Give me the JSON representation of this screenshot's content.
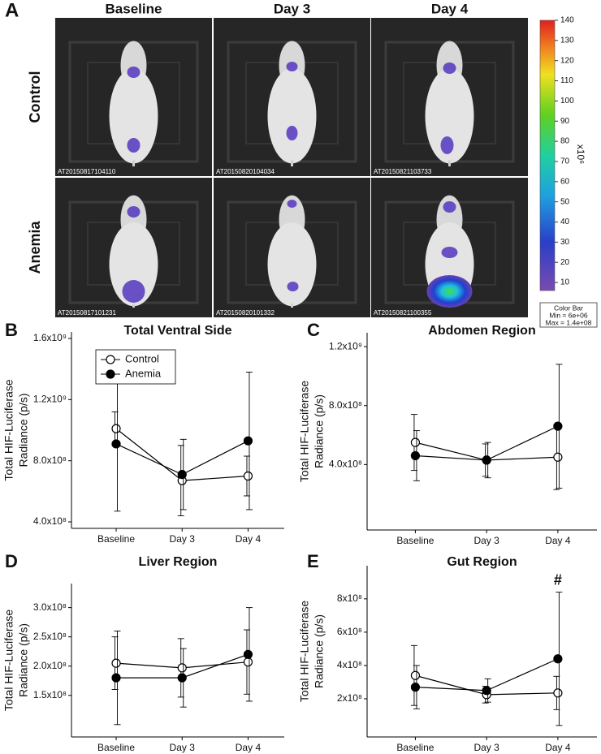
{
  "panel_a": {
    "panel_label": "A",
    "columns": [
      "Baseline",
      "Day 3",
      "Day 4"
    ],
    "rows": [
      "Control",
      "Anemia"
    ],
    "images": [
      "AT20150817104110",
      "AT20150820104034",
      "AT20150821103733",
      "AT20150817101231",
      "AT20150820101332",
      "AT20150821100355"
    ],
    "colorbar": {
      "lim": [
        6,
        140
      ],
      "ticks": [
        10,
        20,
        30,
        40,
        50,
        60,
        70,
        80,
        90,
        100,
        110,
        120,
        130,
        140
      ],
      "unit": "x10⁶",
      "box": [
        "Color Bar",
        "Min = 6e+06",
        "Max = 1.4e+08"
      ]
    }
  },
  "chart_data": [
    {
      "type": "line",
      "panel_label": "B",
      "title": "Total Ventral Side",
      "ylabel": [
        "Total HIF-Luciferase",
        "Radiance (p/s)"
      ],
      "categories": [
        "Baseline",
        "Day 3",
        "Day 4"
      ],
      "ylim": [
        400000000,
        1600000000
      ],
      "yticks": [
        {
          "value": 400000000,
          "label": "4.0x10⁸"
        },
        {
          "value": 800000000,
          "label": "8.0x10⁸"
        },
        {
          "value": 1200000000,
          "label": "1.2x10⁹"
        },
        {
          "value": 1600000000,
          "label": "1.6x10⁹"
        }
      ],
      "legend": "upper left",
      "series": [
        {
          "name": "Control",
          "color": "#000000",
          "marker_fill": "#ffffff",
          "values": [
            1010000000,
            670000000,
            700000000
          ],
          "errors": [
            110000000,
            230000000,
            130000000
          ]
        },
        {
          "name": "Anemia",
          "color": "#000000",
          "marker_fill": "#000000",
          "values": [
            910000000,
            710000000,
            930000000
          ],
          "errors": [
            440000000,
            230000000,
            450000000
          ]
        }
      ]
    },
    {
      "type": "line",
      "panel_label": "C",
      "title": "Abdomen Region",
      "ylabel": [
        "Total HIF-Luciferase",
        "Radiance (p/s)"
      ],
      "categories": [
        "Baseline",
        "Day 3",
        "Day 4"
      ],
      "ylim": [
        0,
        1250000000
      ],
      "yticks": [
        {
          "value": 400000000,
          "label": "4.0x10⁸"
        },
        {
          "value": 800000000,
          "label": "8.0x10⁸"
        },
        {
          "value": 1200000000,
          "label": "1.2x10⁹"
        }
      ],
      "series": [
        {
          "color": "#000000",
          "marker_fill": "#ffffff",
          "values": [
            550000000,
            430000000,
            450000000
          ],
          "errors": [
            190000000,
            110000000,
            220000000
          ]
        },
        {
          "color": "#000000",
          "marker_fill": "#000000",
          "values": [
            460000000,
            430000000,
            660000000
          ],
          "errors": [
            170000000,
            120000000,
            420000000
          ]
        }
      ]
    },
    {
      "type": "line",
      "panel_label": "D",
      "title": "Liver Region",
      "ylabel": [
        "Total HIF-Luciferase",
        "Radiance (p/s)"
      ],
      "categories": [
        "Baseline",
        "Day 3",
        "Day 4"
      ],
      "ylim": [
        90000000,
        330000000
      ],
      "yticks": [
        {
          "value": 150000000,
          "label": "1.5x10⁸"
        },
        {
          "value": 200000000,
          "label": "2.0x10⁸"
        },
        {
          "value": 250000000,
          "label": "2.5x10⁸"
        },
        {
          "value": 300000000,
          "label": "3.0x10⁸"
        }
      ],
      "series": [
        {
          "color": "#000000",
          "marker_fill": "#ffffff",
          "values": [
            205000000,
            197000000,
            207000000
          ],
          "errors": [
            45000000,
            50000000,
            55000000
          ]
        },
        {
          "color": "#000000",
          "marker_fill": "#000000",
          "values": [
            180000000,
            180000000,
            220000000
          ],
          "errors": [
            80000000,
            50000000,
            80000000
          ]
        }
      ]
    },
    {
      "type": "line",
      "panel_label": "E",
      "title": "Gut Region",
      "ylabel": [
        "Total HIF-Luciferase",
        "Radiance (p/s)"
      ],
      "categories": [
        "Baseline",
        "Day 3",
        "Day 4"
      ],
      "ylim": [
        10000000,
        960000000
      ],
      "yticks": [
        {
          "value": 200000000,
          "label": "2x10⁸"
        },
        {
          "value": 400000000,
          "label": "4x10⁸"
        },
        {
          "value": 600000000,
          "label": "6x10⁸"
        },
        {
          "value": 800000000,
          "label": "8x10⁸"
        }
      ],
      "annotations": [
        {
          "text": "#",
          "x": "Day 4"
        }
      ],
      "series": [
        {
          "color": "#000000",
          "marker_fill": "#ffffff",
          "values": [
            340000000,
            225000000,
            235000000
          ],
          "errors": [
            180000000,
            50000000,
            100000000
          ]
        },
        {
          "color": "#000000",
          "marker_fill": "#000000",
          "values": [
            270000000,
            250000000,
            440000000
          ],
          "errors": [
            130000000,
            70000000,
            400000000
          ]
        }
      ]
    }
  ]
}
